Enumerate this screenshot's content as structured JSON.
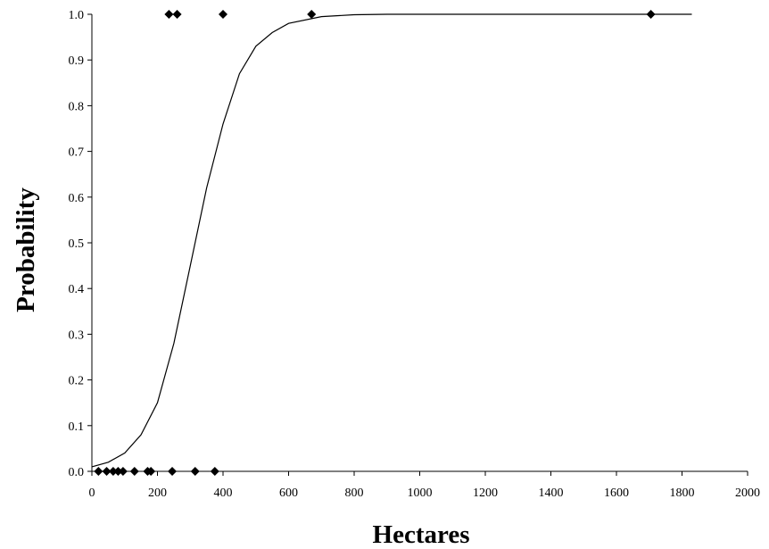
{
  "chart_data": {
    "type": "scatter",
    "title": "",
    "xlabel": "Hectares",
    "ylabel": "Probability",
    "xlim": [
      0,
      2000
    ],
    "ylim": [
      0,
      1
    ],
    "x_ticks": [
      0,
      200,
      400,
      600,
      800,
      1000,
      1200,
      1400,
      1600,
      1800,
      2000
    ],
    "y_ticks": [
      "0.0",
      "0.1",
      "0.2",
      "0.3",
      "0.4",
      "0.5",
      "0.6",
      "0.7",
      "0.8",
      "0.9",
      "1.0"
    ],
    "grid": false,
    "legend": "none",
    "series": [
      {
        "type": "scatter",
        "marker": "diamond",
        "color": "#000000",
        "points": [
          {
            "x": 20,
            "y": 0
          },
          {
            "x": 45,
            "y": 0
          },
          {
            "x": 65,
            "y": 0
          },
          {
            "x": 80,
            "y": 0
          },
          {
            "x": 95,
            "y": 0
          },
          {
            "x": 130,
            "y": 0
          },
          {
            "x": 170,
            "y": 0
          },
          {
            "x": 180,
            "y": 0
          },
          {
            "x": 245,
            "y": 0
          },
          {
            "x": 315,
            "y": 0
          },
          {
            "x": 375,
            "y": 0
          },
          {
            "x": 235,
            "y": 1
          },
          {
            "x": 260,
            "y": 1
          },
          {
            "x": 400,
            "y": 1
          },
          {
            "x": 670,
            "y": 1
          },
          {
            "x": 1705,
            "y": 1
          }
        ]
      },
      {
        "type": "line",
        "color": "#000000",
        "points": [
          {
            "x": 0,
            "y": 0.01
          },
          {
            "x": 50,
            "y": 0.02
          },
          {
            "x": 100,
            "y": 0.04
          },
          {
            "x": 150,
            "y": 0.08
          },
          {
            "x": 200,
            "y": 0.15
          },
          {
            "x": 250,
            "y": 0.28
          },
          {
            "x": 300,
            "y": 0.45
          },
          {
            "x": 350,
            "y": 0.62
          },
          {
            "x": 400,
            "y": 0.76
          },
          {
            "x": 450,
            "y": 0.87
          },
          {
            "x": 500,
            "y": 0.93
          },
          {
            "x": 550,
            "y": 0.96
          },
          {
            "x": 600,
            "y": 0.98
          },
          {
            "x": 700,
            "y": 0.995
          },
          {
            "x": 800,
            "y": 0.999
          },
          {
            "x": 900,
            "y": 1.0
          },
          {
            "x": 1200,
            "y": 1.0
          },
          {
            "x": 1500,
            "y": 1.0
          },
          {
            "x": 1830,
            "y": 1.0
          }
        ]
      }
    ]
  }
}
